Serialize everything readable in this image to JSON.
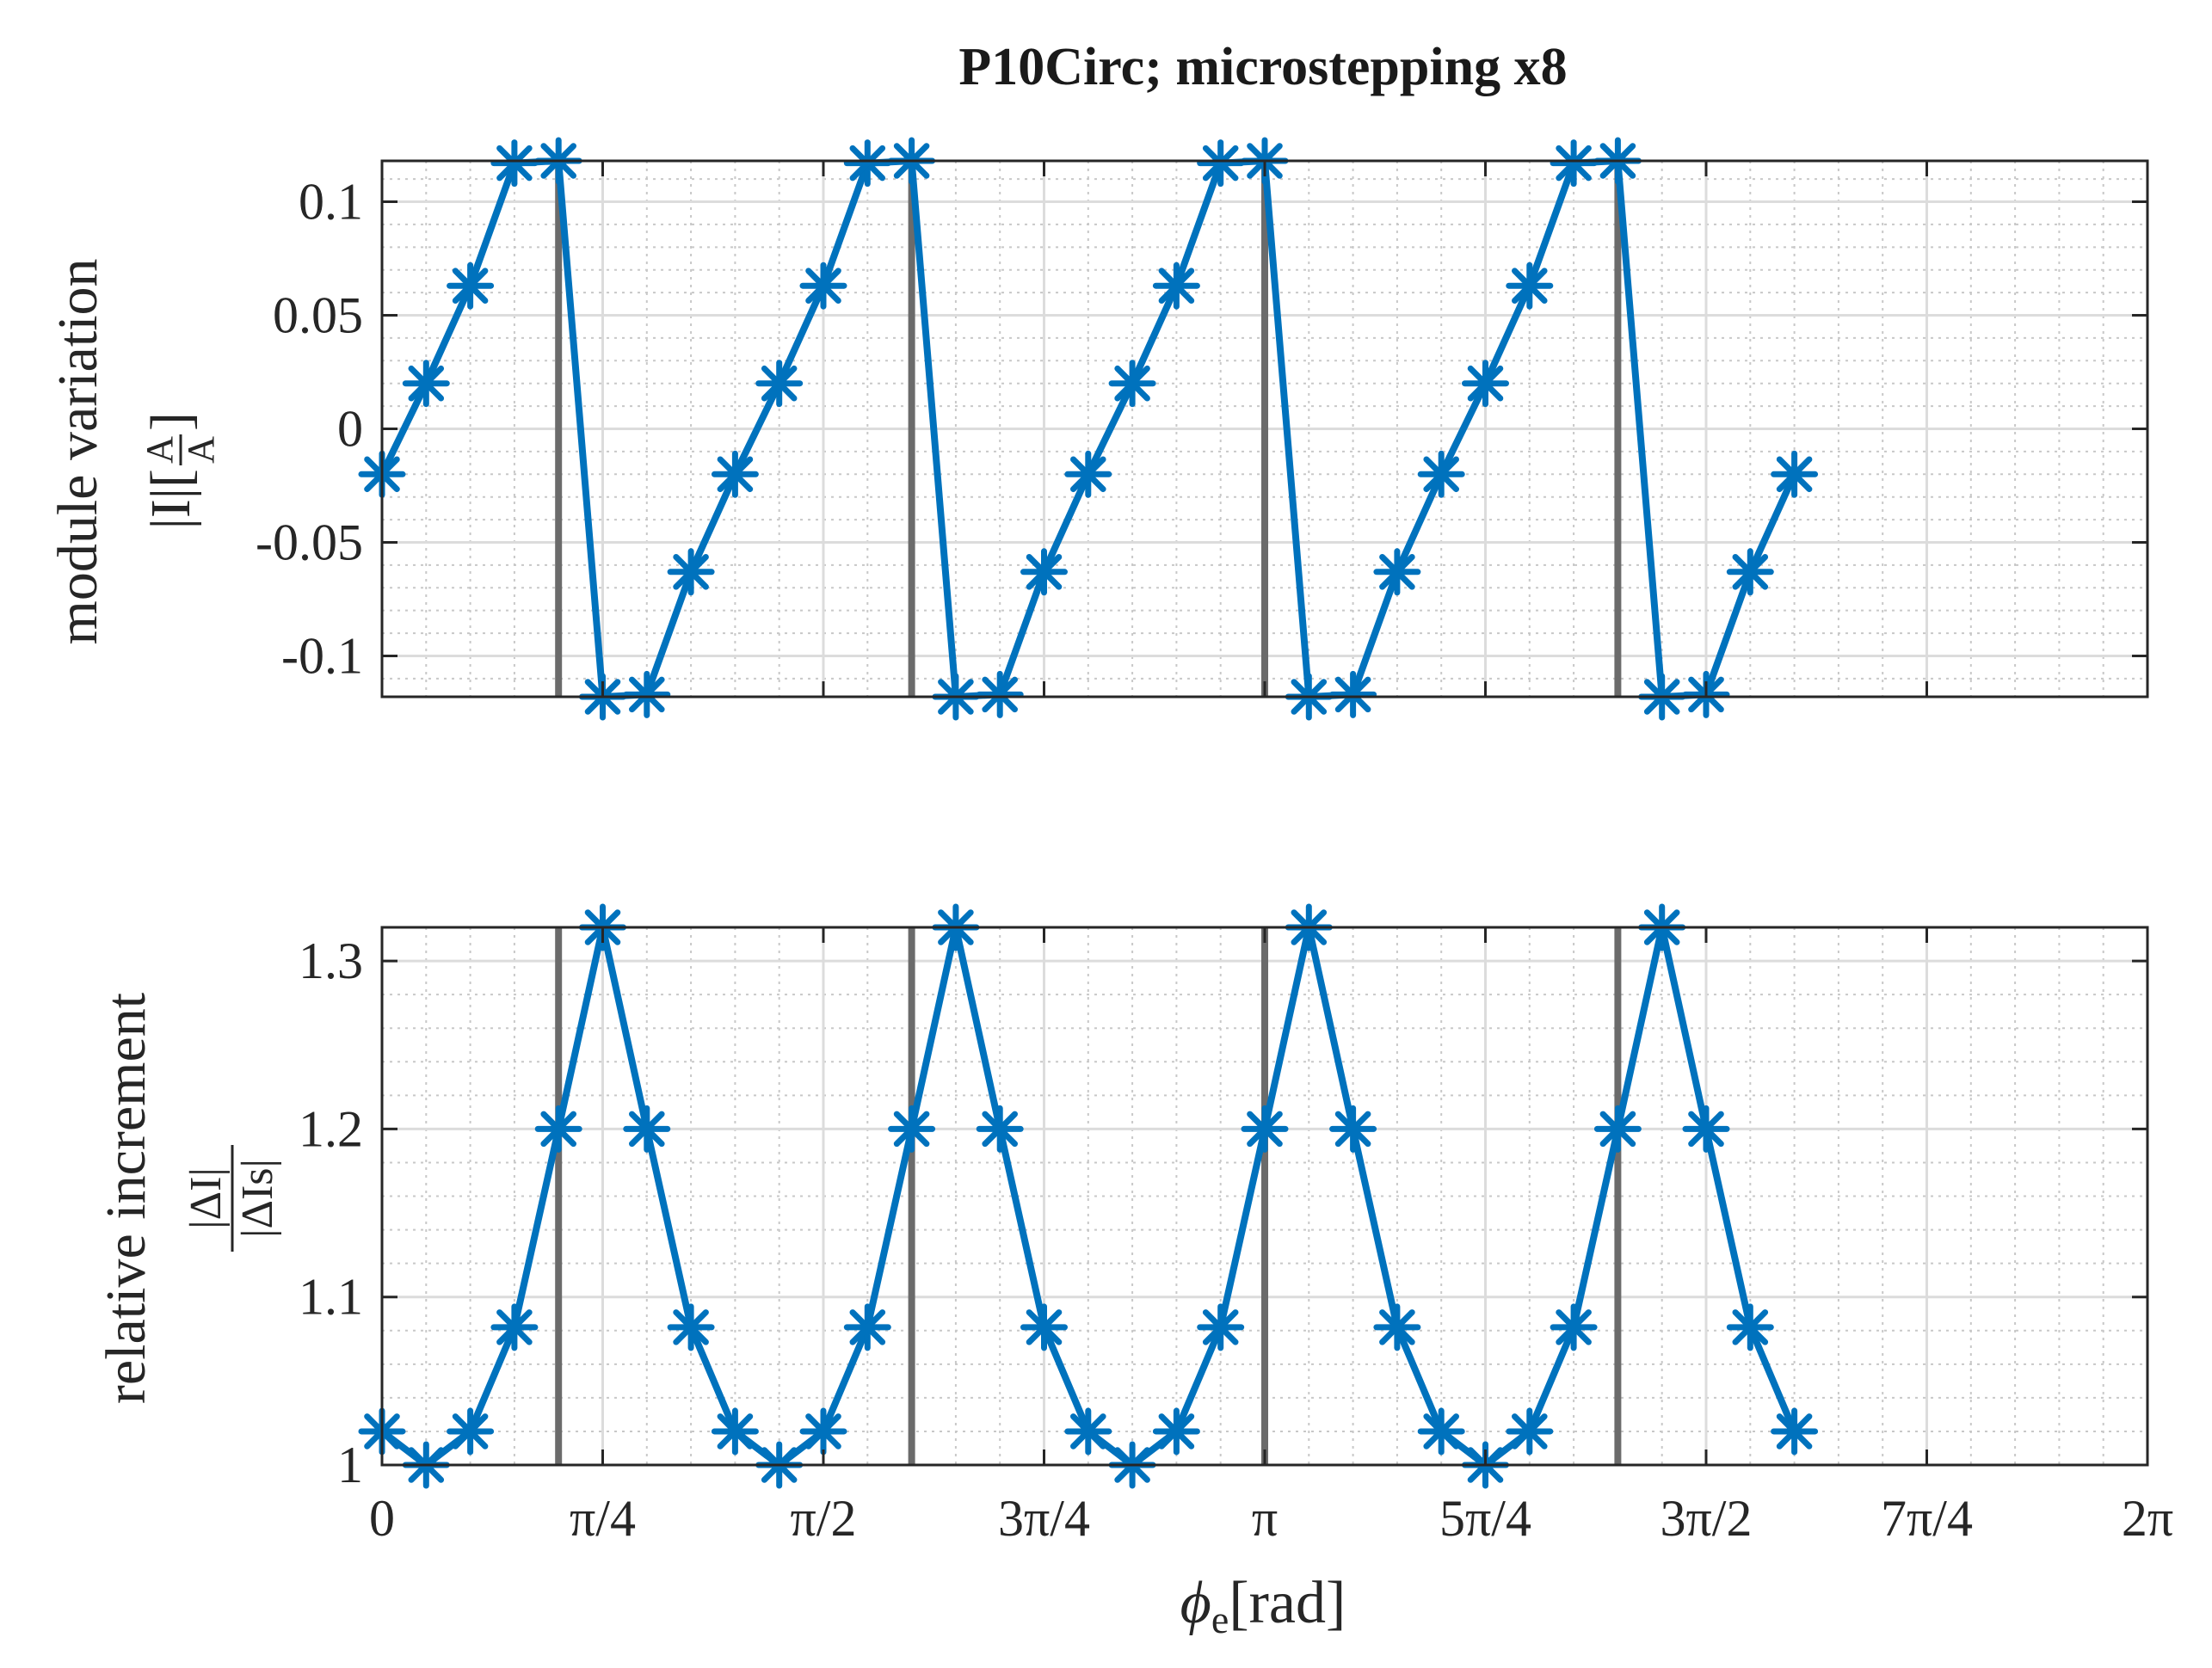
{
  "figure_title": "P10Circ; microstepping x8",
  "x_axis": {
    "label": "ϕe[rad]",
    "label_main": "ϕ",
    "label_sub": "e",
    "label_unit": "[rad]",
    "tick_labels": [
      "0",
      "π/4",
      "π/2",
      "3π/4",
      "π",
      "5π/4",
      "3π/2",
      "7π/4",
      "2π"
    ]
  },
  "colors": {
    "series": "#0072BD",
    "vline": "#6b6b6b",
    "grid": "#dcdcdc",
    "axis": "#262626"
  },
  "chart_data": [
    {
      "type": "line",
      "title": "P10Circ; microstepping x8",
      "ylabel": "module variation |I|[A/A]",
      "ylabel_line1": "module variation",
      "ylabel_line2": "|I|[",
      "ylabel_frac_num": "A",
      "ylabel_frac_den": "A",
      "ylabel_close": "]",
      "xlabel": "ϕe[rad]",
      "x_units": "multiples of π",
      "xlim": [
        0,
        2
      ],
      "ylim": [
        -0.118,
        0.118
      ],
      "yticks": [
        -0.1,
        -0.05,
        0,
        0.05,
        0.1
      ],
      "ytick_labels": [
        "-0.1",
        "-0.05",
        "0",
        "0.05",
        "0.1"
      ],
      "grid": true,
      "minor_grid": true,
      "marker": "asterisk",
      "vertical_lines": [
        0.2,
        0.6,
        1.0,
        1.4
      ],
      "series": [
        {
          "name": "module variation",
          "x": [
            0,
            0.05,
            0.1,
            0.15,
            0.2,
            0.25,
            0.3,
            0.35,
            0.4,
            0.45,
            0.5,
            0.55,
            0.6,
            0.65,
            0.7,
            0.75,
            0.8,
            0.85,
            0.9,
            0.95,
            1.0,
            1.05,
            1.1,
            1.15,
            1.2,
            1.25,
            1.3,
            1.35,
            1.4,
            1.45,
            1.5,
            1.55,
            1.6
          ],
          "values": [
            -0.02,
            0.02,
            0.063,
            0.117,
            0.118,
            -0.118,
            -0.117,
            -0.063,
            -0.02,
            0.02,
            0.063,
            0.117,
            0.118,
            -0.118,
            -0.117,
            -0.063,
            -0.02,
            0.02,
            0.063,
            0.117,
            0.118,
            -0.118,
            -0.117,
            -0.063,
            -0.02,
            0.02,
            0.063,
            0.117,
            0.118,
            -0.118,
            -0.117,
            -0.063,
            -0.02
          ]
        }
      ]
    },
    {
      "type": "line",
      "ylabel": "relative increment |ΔI|/|ΔIs|",
      "ylabel_line1": "relative increment",
      "ylabel_frac_num": "|ΔI|",
      "ylabel_frac_den": "|ΔIs|",
      "xlabel": "ϕe[rad]",
      "x_units": "multiples of π",
      "xlim": [
        0,
        2
      ],
      "ylim": [
        1.0,
        1.32
      ],
      "yticks": [
        1.0,
        1.1,
        1.2,
        1.3
      ],
      "ytick_labels": [
        "1",
        "1.1",
        "1.2",
        "1.3"
      ],
      "grid": true,
      "minor_grid": true,
      "marker": "asterisk",
      "vertical_lines": [
        0.2,
        0.6,
        1.0,
        1.4
      ],
      "series": [
        {
          "name": "relative increment",
          "x": [
            0,
            0.05,
            0.1,
            0.15,
            0.2,
            0.25,
            0.3,
            0.35,
            0.4,
            0.45,
            0.5,
            0.55,
            0.6,
            0.65,
            0.7,
            0.75,
            0.8,
            0.85,
            0.9,
            0.95,
            1.0,
            1.05,
            1.1,
            1.15,
            1.2,
            1.25,
            1.3,
            1.35,
            1.4,
            1.45,
            1.5,
            1.55,
            1.6
          ],
          "values": [
            1.02,
            1.0,
            1.02,
            1.082,
            1.2,
            1.32,
            1.2,
            1.082,
            1.02,
            1.0,
            1.02,
            1.082,
            1.2,
            1.32,
            1.2,
            1.082,
            1.02,
            1.0,
            1.02,
            1.082,
            1.2,
            1.32,
            1.2,
            1.082,
            1.02,
            1.0,
            1.02,
            1.082,
            1.2,
            1.32,
            1.2,
            1.082,
            1.02
          ]
        }
      ]
    }
  ]
}
